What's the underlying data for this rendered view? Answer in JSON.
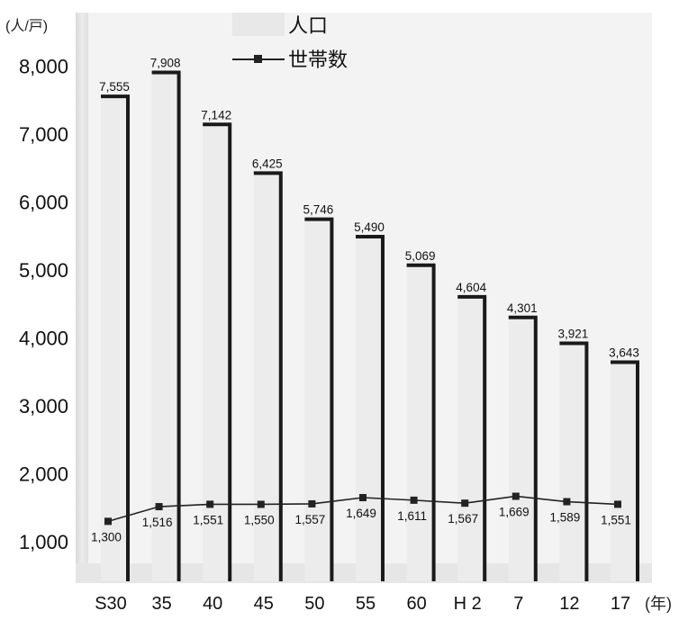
{
  "chart_data": {
    "type": "bar",
    "unit_label": "(人/戸)",
    "x_unit_label": "(年)",
    "categories": [
      "S30",
      "35",
      "40",
      "45",
      "50",
      "55",
      "60",
      "H 2",
      "7",
      "12",
      "17"
    ],
    "ylim": [
      0,
      8000
    ],
    "y_ticks": [
      "1,000",
      "2,000",
      "3,000",
      "4,000",
      "5,000",
      "6,000",
      "7,000",
      "8,000"
    ],
    "y_tick_values": [
      1000,
      2000,
      3000,
      4000,
      5000,
      6000,
      7000,
      8000
    ],
    "grid": false,
    "legend_position": "top-center",
    "series": [
      {
        "name": "人口",
        "kind": "bar",
        "values": [
          7555,
          7908,
          7142,
          6425,
          5746,
          5490,
          5069,
          4604,
          4301,
          3921,
          3643
        ],
        "labels": [
          "7,555",
          "7,908",
          "7,142",
          "6,425",
          "5,746",
          "5,490",
          "5,069",
          "4,604",
          "4,301",
          "3,921",
          "3,643"
        ],
        "color": "#ececec",
        "edge_color": "#1a1a1a"
      },
      {
        "name": "世帯数",
        "kind": "line",
        "values": [
          1300,
          1516,
          1551,
          1550,
          1557,
          1649,
          1611,
          1567,
          1669,
          1589,
          1551
        ],
        "labels": [
          "1,300",
          "1,516",
          "1,551",
          "1,550",
          "1,557",
          "1,649",
          "1,611",
          "1,567",
          "1,669",
          "1,589",
          "1,551"
        ],
        "color": "#222222",
        "marker": "square"
      }
    ]
  }
}
